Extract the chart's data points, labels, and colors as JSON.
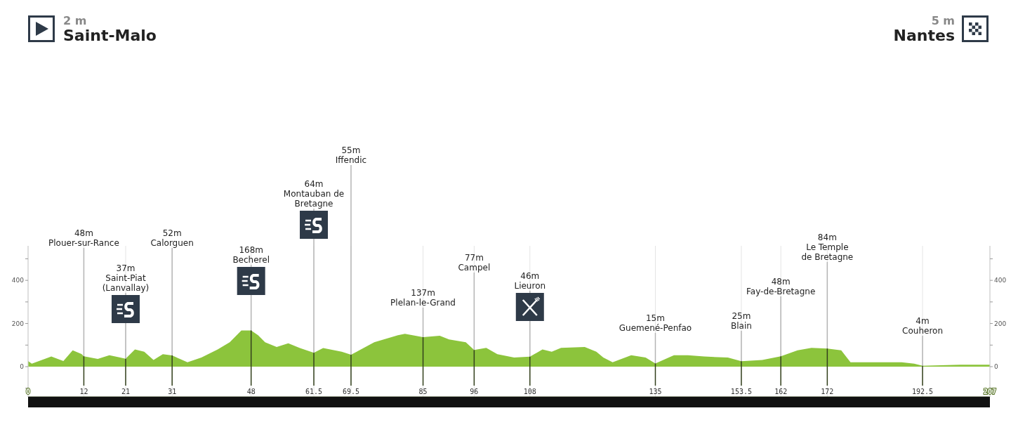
{
  "chart_data": {
    "type": "area",
    "color": "#8cc43c",
    "x": [
      0,
      0.8,
      5,
      7.6,
      9.6,
      11.5,
      12,
      15,
      17.5,
      21,
      23,
      25,
      27,
      29,
      31,
      34.3,
      37.3,
      40.8,
      43.4,
      45.9,
      48,
      49.5,
      51,
      53.5,
      56,
      58.5,
      61.5,
      63.5,
      67.5,
      69.5,
      74.5,
      79.6,
      81.1,
      85,
      88.6,
      90.6,
      94.2,
      96,
      98.6,
      101,
      104.6,
      108,
      110.7,
      112.7,
      114.7,
      119.8,
      122.3,
      123.8,
      125.8,
      129.8,
      132.9,
      135,
      139,
      142,
      145.5,
      150.6,
      153.5,
      158,
      162,
      165.6,
      168.6,
      172,
      175,
      177,
      180.7,
      188,
      190.7,
      192.5,
      200.6,
      207
    ],
    "values": [
      26,
      14,
      47,
      26,
      76,
      59,
      48,
      36,
      53,
      37,
      80,
      69,
      31,
      58,
      52,
      20,
      42,
      80,
      113,
      168,
      168,
      146,
      113,
      91,
      108,
      86,
      64,
      86,
      69,
      55,
      113,
      146,
      152,
      137,
      143,
      126,
      113,
      77,
      87,
      58,
      42,
      46,
      80,
      69,
      87,
      91,
      69,
      42,
      20,
      53,
      42,
      15,
      53,
      53,
      47,
      42,
      25,
      31,
      48,
      76,
      87,
      84,
      76,
      20,
      20,
      20,
      14,
      4,
      9,
      9
    ],
    "xlim": [
      0,
      207
    ],
    "grid": "x",
    "xticks": [
      0,
      12,
      21,
      31,
      48,
      61.5,
      69.5,
      85,
      96,
      108,
      135,
      153.5,
      162,
      172,
      192.5,
      207
    ],
    "ylim": [
      -140,
      560
    ],
    "yticks": [
      {
        "value": -100,
        "label": null
      },
      0,
      {
        "value": 100,
        "label": null
      },
      200,
      {
        "value": 300,
        "label": null
      },
      400,
      {
        "value": 500,
        "label": null
      }
    ],
    "y2lim": [
      -140,
      560
    ],
    "y2ticks": [
      {
        "value": -100,
        "label": null
      },
      0,
      {
        "value": 100,
        "label": null
      },
      200,
      {
        "value": 300,
        "label": null
      },
      400,
      {
        "value": 500,
        "label": null
      }
    ],
    "annotations": [
      "2 m",
      "Saint-Malo",
      "5 m",
      "Nantes",
      "48m\nPlouer-sur-Rance",
      {
        "text": "37m\nSaint-Piat\n(Lanvallay)",
        "x": 21,
        "y": 37
      },
      "52m\nCalorguen",
      {
        "text": "168m\nBecherel",
        "x": 48,
        "y": 168
      },
      "64m\nMontauban de\nBretagne",
      "55m\nIffendic",
      {
        "text": "137m\nPlelan-le-Grand",
        "x": 85,
        "y": 137
      },
      {
        "text": "77m\nCampel",
        "x": 96,
        "y": 77
      },
      {
        "text": "46m\nLieuron",
        "x": 108,
        "y": 46
      },
      {
        "text": "15m\nGuemené-Penfao",
        "x": 135,
        "y": 15
      },
      {
        "text": "25m\nBlain",
        "x": 153.5,
        "y": 25
      },
      {
        "text": "48m\nFay-de-Bretagne",
        "x": 162,
        "y": 48
      },
      {
        "text": "84m\nLe Temple\nde Bretagne",
        "x": 172,
        "y": 84
      },
      {
        "text": "4m\nCouheron",
        "x": 192.5,
        "y": 4
      }
    ]
  }
}
